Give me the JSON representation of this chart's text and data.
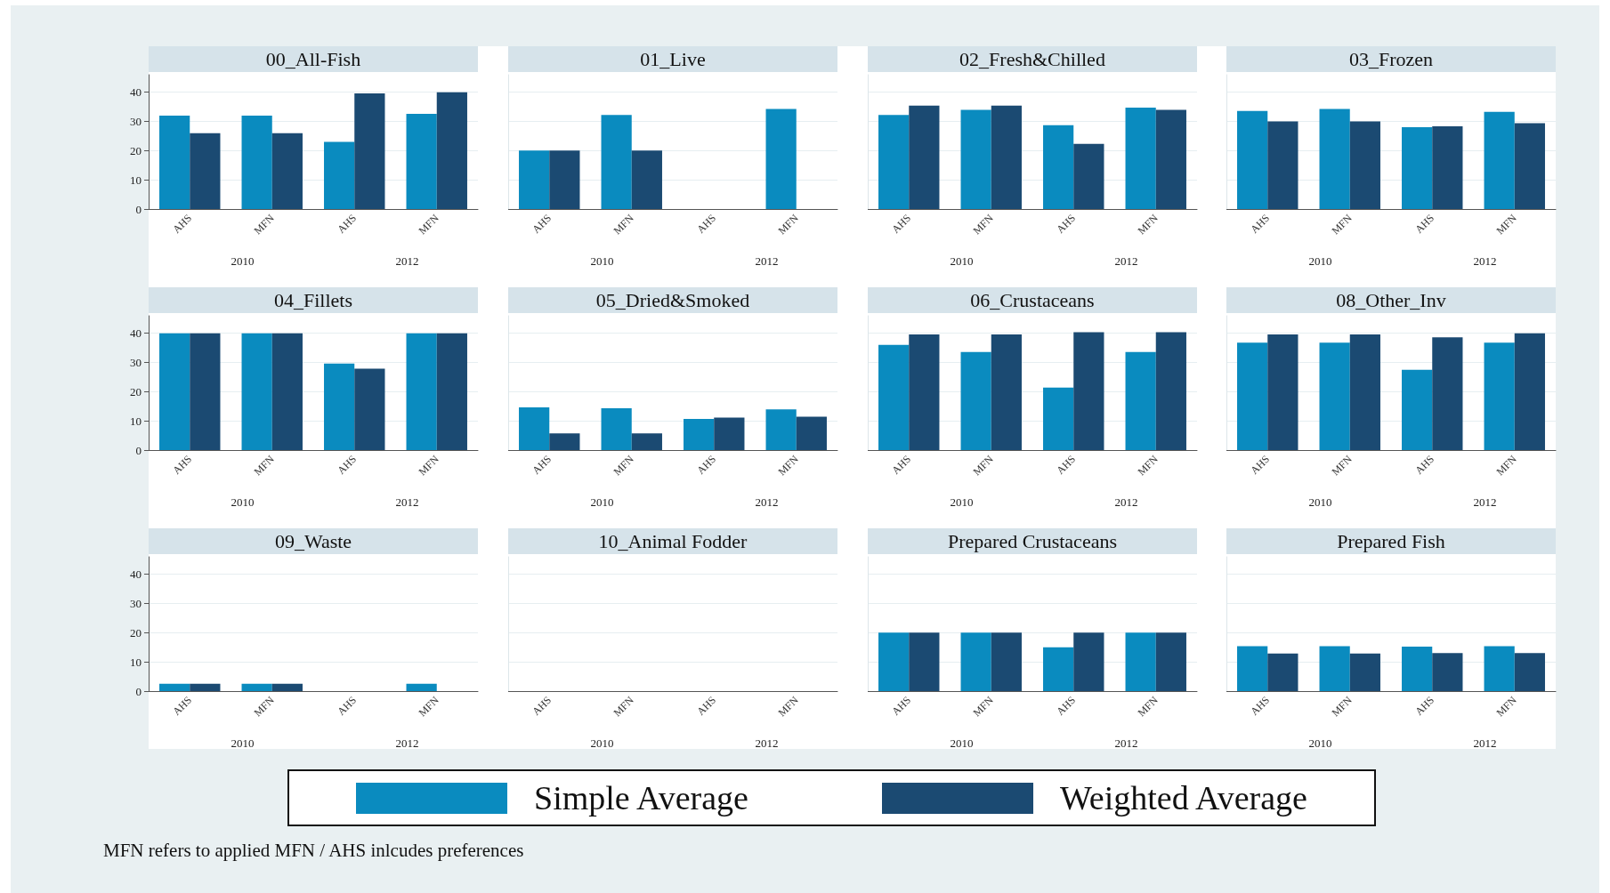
{
  "chart_data": [
    {
      "type": "bar",
      "title": "00_All-Fish",
      "categories": [
        "AHS",
        "MFN",
        "AHS",
        "MFN"
      ],
      "series": [
        {
          "name": "Simple Average",
          "color": "#0a8bbf",
          "values": [
            32,
            32,
            23,
            32.6
          ]
        },
        {
          "name": "Weighted Average",
          "color": "#1b4a72",
          "values": [
            26,
            26,
            39.6,
            40
          ]
        }
      ],
      "ylim": [
        0,
        46
      ],
      "yticks": [
        0,
        10,
        20,
        30,
        40
      ],
      "grid": "y",
      "legend": "bottom",
      "annotations": [
        "2010",
        "2012",
        "MFN refers to applied MFN / AHS inlcudes preferences"
      ]
    },
    {
      "type": "bar",
      "title": "01_Live",
      "categories": [
        "AHS",
        "MFN",
        "AHS",
        "MFN"
      ],
      "series": [
        {
          "color": "#0a8bbf",
          "values": [
            20,
            32.2,
            null,
            34.3
          ]
        },
        {
          "color": "#1b4a72",
          "values": [
            20,
            20,
            null,
            null
          ]
        }
      ],
      "ylim": [
        0,
        46
      ],
      "yticks": [
        0,
        10,
        20,
        30,
        40
      ],
      "grid": "y",
      "tick_labels": "x",
      "annotations": [
        "2010",
        "2012"
      ]
    },
    {
      "type": "bar",
      "title": "02_Fresh&Chilled",
      "categories": [
        "AHS",
        "MFN",
        "AHS",
        "MFN"
      ],
      "series": [
        {
          "color": "#0a8bbf",
          "values": [
            32.2,
            34,
            28.7,
            34.7
          ]
        },
        {
          "color": "#1b4a72",
          "values": [
            35.4,
            35.4,
            22.3,
            34
          ]
        }
      ],
      "ylim": [
        0,
        46
      ],
      "yticks": [
        0,
        10,
        20,
        30,
        40
      ],
      "grid": "y",
      "tick_labels": "x",
      "annotations": [
        "2010",
        "2012"
      ]
    },
    {
      "type": "bar",
      "title": "03_Frozen",
      "categories": [
        "AHS",
        "MFN",
        "AHS",
        "MFN"
      ],
      "series": [
        {
          "color": "#0a8bbf",
          "values": [
            33.6,
            34.3,
            28,
            33.3
          ]
        },
        {
          "color": "#1b4a72",
          "values": [
            30,
            30,
            28.3,
            29.4
          ]
        }
      ],
      "ylim": [
        0,
        46
      ],
      "yticks": [
        0,
        10,
        20,
        30,
        40
      ],
      "grid": "y",
      "tick_labels": "x",
      "annotations": [
        "2010",
        "2012"
      ]
    },
    {
      "type": "bar",
      "title": "04_Fillets",
      "categories": [
        "AHS",
        "MFN",
        "AHS",
        "MFN"
      ],
      "series": [
        {
          "color": "#0a8bbf",
          "values": [
            40,
            40,
            29.6,
            40
          ]
        },
        {
          "color": "#1b4a72",
          "values": [
            40,
            40,
            27.9,
            40
          ]
        }
      ],
      "ylim": [
        0,
        46
      ],
      "yticks": [
        0,
        10,
        20,
        30,
        40
      ],
      "grid": "y",
      "annotations": [
        "2010",
        "2012"
      ]
    },
    {
      "type": "bar",
      "title": "05_Dried&Smoked",
      "categories": [
        "AHS",
        "MFN",
        "AHS",
        "MFN"
      ],
      "series": [
        {
          "color": "#0a8bbf",
          "values": [
            14.6,
            14.3,
            10.7,
            13.9
          ]
        },
        {
          "color": "#1b4a72",
          "values": [
            5.7,
            5.7,
            11.1,
            11.4
          ]
        }
      ],
      "ylim": [
        0,
        46
      ],
      "yticks": [
        0,
        10,
        20,
        30,
        40
      ],
      "grid": "y",
      "tick_labels": "x",
      "annotations": [
        "2010",
        "2012"
      ]
    },
    {
      "type": "bar",
      "title": "06_Crustaceans",
      "categories": [
        "AHS",
        "MFN",
        "AHS",
        "MFN"
      ],
      "series": [
        {
          "color": "#0a8bbf",
          "values": [
            36,
            33.6,
            21.4,
            33.6
          ]
        },
        {
          "color": "#1b4a72",
          "values": [
            39.6,
            39.6,
            40.4,
            40.4
          ]
        }
      ],
      "ylim": [
        0,
        46
      ],
      "yticks": [
        0,
        10,
        20,
        30,
        40
      ],
      "grid": "y",
      "tick_labels": "x",
      "annotations": [
        "2010",
        "2012"
      ]
    },
    {
      "type": "bar",
      "title": "08_Other_Inv",
      "categories": [
        "AHS",
        "MFN",
        "AHS",
        "MFN"
      ],
      "series": [
        {
          "color": "#0a8bbf",
          "values": [
            36.8,
            36.8,
            27.5,
            36.8
          ]
        },
        {
          "color": "#1b4a72",
          "values": [
            39.6,
            39.6,
            38.6,
            40
          ]
        }
      ],
      "ylim": [
        0,
        46
      ],
      "yticks": [
        0,
        10,
        20,
        30,
        40
      ],
      "grid": "y",
      "tick_labels": "x",
      "annotations": [
        "2010",
        "2012"
      ]
    },
    {
      "type": "bar",
      "title": "09_Waste",
      "categories": [
        "AHS",
        "MFN",
        "AHS",
        "MFN"
      ],
      "series": [
        {
          "color": "#0a8bbf",
          "values": [
            2.5,
            2.5,
            null,
            2.5
          ]
        },
        {
          "color": "#1b4a72",
          "values": [
            2.5,
            2.5,
            null,
            null
          ]
        }
      ],
      "ylim": [
        0,
        46
      ],
      "yticks": [
        0,
        10,
        20,
        30,
        40
      ],
      "grid": "y",
      "annotations": [
        "2010",
        "2012"
      ]
    },
    {
      "type": "bar",
      "title": "10_Animal Fodder",
      "categories": [
        "AHS",
        "MFN",
        "AHS",
        "MFN"
      ],
      "series": [
        {
          "color": "#0a8bbf",
          "values": [
            null,
            null,
            null,
            null
          ]
        },
        {
          "color": "#1b4a72",
          "values": [
            null,
            null,
            null,
            null
          ]
        }
      ],
      "ylim": [
        0,
        46
      ],
      "yticks": [
        0,
        10,
        20,
        30,
        40
      ],
      "grid": "y",
      "tick_labels": "x",
      "annotations": [
        "2010",
        "2012"
      ]
    },
    {
      "type": "bar",
      "title": "Prepared Crustaceans",
      "categories": [
        "AHS",
        "MFN",
        "AHS",
        "MFN"
      ],
      "series": [
        {
          "color": "#0a8bbf",
          "values": [
            20,
            20,
            15,
            20
          ]
        },
        {
          "color": "#1b4a72",
          "values": [
            20,
            20,
            20,
            20
          ]
        }
      ],
      "ylim": [
        0,
        46
      ],
      "yticks": [
        0,
        10,
        20,
        30,
        40
      ],
      "grid": "y",
      "tick_labels": "x",
      "annotations": [
        "2010",
        "2012"
      ]
    },
    {
      "type": "bar",
      "title": "Prepared Fish",
      "categories": [
        "AHS",
        "MFN",
        "AHS",
        "MFN"
      ],
      "series": [
        {
          "color": "#0a8bbf",
          "values": [
            15.4,
            15.4,
            15.2,
            15.4
          ]
        },
        {
          "color": "#1b4a72",
          "values": [
            12.9,
            12.9,
            13,
            13
          ]
        }
      ],
      "ylim": [
        0,
        46
      ],
      "yticks": [
        0,
        10,
        20,
        30,
        40
      ],
      "grid": "y",
      "tick_labels": "x",
      "annotations": [
        "2010",
        "2012"
      ]
    }
  ]
}
